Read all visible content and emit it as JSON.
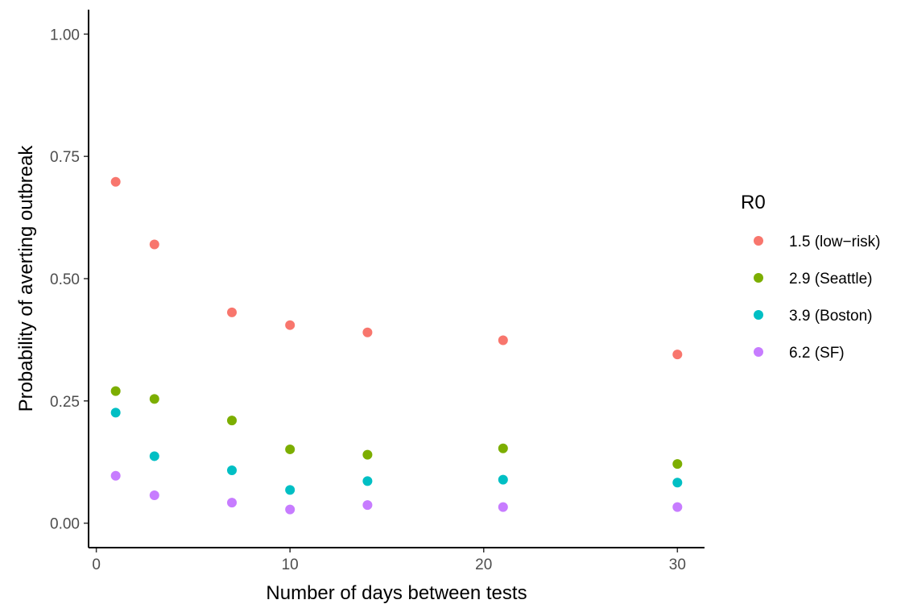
{
  "chart_data": {
    "type": "scatter",
    "title": "",
    "xlabel": "Number of days between tests",
    "ylabel": "Probability of averting outbreak",
    "xlim": [
      -0.4,
      31.4
    ],
    "ylim": [
      -0.05,
      1.05
    ],
    "x_ticks": [
      0,
      10,
      20,
      30
    ],
    "x_tick_labels": [
      "0",
      "10",
      "20",
      "30"
    ],
    "y_ticks": [
      0,
      0.25,
      0.5,
      0.75,
      1.0
    ],
    "y_tick_labels": [
      "0.00",
      "0.25",
      "0.50",
      "0.75",
      "1.00"
    ],
    "grid": false,
    "legend_title": "R0",
    "legend_position": "right",
    "x": [
      1,
      3,
      7,
      10,
      14,
      21,
      30
    ],
    "series": [
      {
        "name": "1.5 (low−risk)",
        "color": "#F8766D",
        "values": [
          0.698,
          0.57,
          0.431,
          0.405,
          0.39,
          0.374,
          0.345
        ]
      },
      {
        "name": "2.9 (Seattle)",
        "color": "#7CAE00",
        "values": [
          0.27,
          0.254,
          0.21,
          0.151,
          0.14,
          0.153,
          0.121
        ]
      },
      {
        "name": "3.9 (Boston)",
        "color": "#00BFC4",
        "values": [
          0.226,
          0.137,
          0.108,
          0.068,
          0.086,
          0.089,
          0.083
        ]
      },
      {
        "name": "6.2 (SF)",
        "color": "#C77CFF",
        "values": [
          0.097,
          0.057,
          0.042,
          0.028,
          0.037,
          0.033,
          0.033
        ]
      }
    ]
  }
}
